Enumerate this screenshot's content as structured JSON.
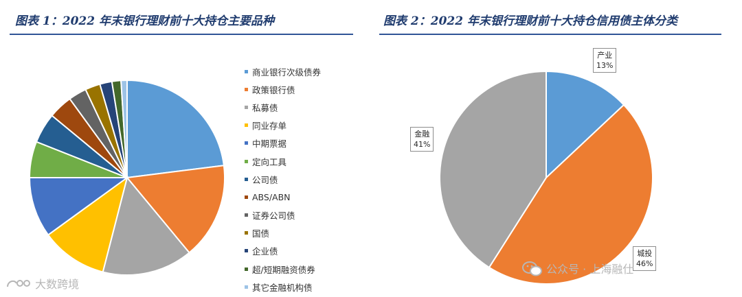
{
  "chart_data": [
    {
      "type": "pie",
      "title": "图表 1：2022 年末银行理财前十大持仓主要品种",
      "legend_position": "right",
      "legend_show_values": false,
      "slices": [
        {
          "label": "商业银行次级债券",
          "value": 23.0,
          "color": "#5b9bd5"
        },
        {
          "label": "政策银行债",
          "value": 16.0,
          "color": "#ed7d31"
        },
        {
          "label": "私募债",
          "value": 15.0,
          "color": "#a5a5a5"
        },
        {
          "label": "同业存单",
          "value": 11.0,
          "color": "#ffc000"
        },
        {
          "label": "中期票据",
          "value": 10.0,
          "color": "#4472c4"
        },
        {
          "label": "定向工具",
          "value": 6.0,
          "color": "#70ad47"
        },
        {
          "label": "公司债",
          "value": 5.0,
          "color": "#255e91"
        },
        {
          "label": "ABS/ABN",
          "value": 4.0,
          "color": "#9e480e"
        },
        {
          "label": "证券公司债",
          "value": 3.0,
          "color": "#636363"
        },
        {
          "label": "国债",
          "value": 2.5,
          "color": "#997300"
        },
        {
          "label": "企业债",
          "value": 2.0,
          "color": "#264478"
        },
        {
          "label": "超/短期融资债券",
          "value": 1.5,
          "color": "#43682b"
        },
        {
          "label": "其它金融机构债",
          "value": 1.0,
          "color": "#9dc3e6"
        }
      ]
    },
    {
      "type": "pie",
      "title": "图表 2：2022 年末银行理财前十大持仓信用债主体分类",
      "legend_position": "none",
      "slices": [
        {
          "label": "产业",
          "value": 13,
          "display": "13%",
          "color": "#5b9bd5"
        },
        {
          "label": "城投",
          "value": 46,
          "display": "46%",
          "color": "#ed7d31"
        },
        {
          "label": "金融",
          "value": 41,
          "display": "41%",
          "color": "#a5a5a5"
        }
      ]
    }
  ],
  "watermarks": {
    "left_text": "大数跨境",
    "right_text": "公众号 · 上海融仕"
  },
  "icons": {
    "left_watermark": "kite-logo-icon",
    "right_watermark": "wechat-icon"
  }
}
